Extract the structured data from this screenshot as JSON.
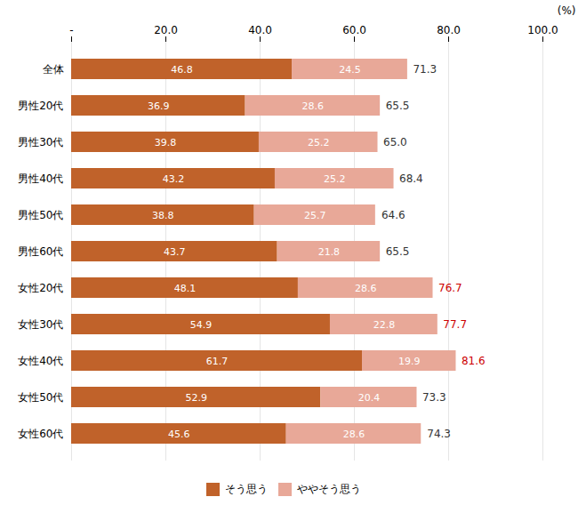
{
  "chart_data": {
    "type": "bar",
    "orientation": "horizontal",
    "stacked": true,
    "categories": [
      "全体",
      "男性20代",
      "男性30代",
      "男性40代",
      "男性50代",
      "男性60代",
      "女性20代",
      "女性30代",
      "女性40代",
      "女性50代",
      "女性60代"
    ],
    "series": [
      {
        "name": "そう思う",
        "color": "#C0622A",
        "values": [
          46.8,
          36.9,
          39.8,
          43.2,
          38.8,
          43.7,
          48.1,
          54.9,
          61.7,
          52.9,
          45.6
        ]
      },
      {
        "name": "ややそう思う",
        "color": "#E8A898",
        "values": [
          24.5,
          28.6,
          25.2,
          25.2,
          25.7,
          21.8,
          28.6,
          22.8,
          19.9,
          20.4,
          28.6
        ]
      }
    ],
    "totals": [
      71.3,
      65.5,
      65.0,
      68.4,
      64.6,
      65.5,
      76.7,
      77.7,
      81.6,
      73.3,
      74.3
    ],
    "total_labels": [
      "71.3",
      "65.5",
      "65.0",
      "68.4",
      "64.6",
      "65.5",
      "76.7",
      "77.7",
      "81.6",
      "73.3",
      "74.3"
    ],
    "total_colors": [
      "#333333",
      "#333333",
      "#333333",
      "#333333",
      "#333333",
      "#333333",
      "#CC0000",
      "#CC0000",
      "#CC0000",
      "#333333",
      "#333333"
    ],
    "xlabel": "(%)",
    "xlim": [
      0,
      100
    ],
    "xticks": [
      {
        "value": 0,
        "label": "-"
      },
      {
        "value": 20,
        "label": "20.0"
      },
      {
        "value": 40,
        "label": "40.0"
      },
      {
        "value": 60,
        "label": "60.0"
      },
      {
        "value": 80,
        "label": "80.0"
      },
      {
        "value": 100,
        "label": "100.0"
      }
    ],
    "grid": true,
    "legend": "bottom",
    "data_labels": true
  }
}
